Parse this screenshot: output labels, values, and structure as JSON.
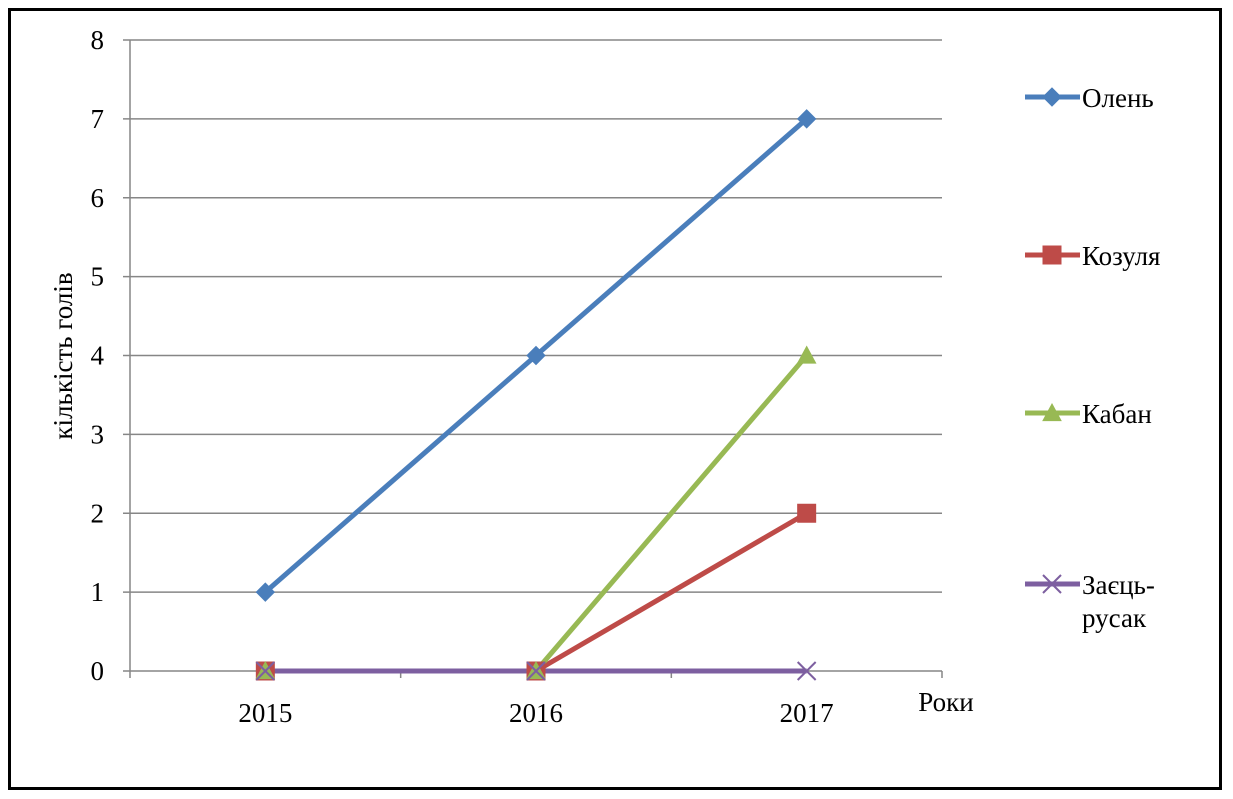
{
  "chart_data": {
    "type": "line",
    "title": "",
    "xlabel": "Роки",
    "ylabel": "кількість голів",
    "categories": [
      "2015",
      "2016",
      "2017"
    ],
    "ylim": [
      0,
      8
    ],
    "yticks": [
      "0",
      "1",
      "2",
      "3",
      "4",
      "5",
      "6",
      "7",
      "8"
    ],
    "grid": true,
    "legend_position": "right",
    "series": [
      {
        "name": "Олень",
        "values": [
          1,
          4,
          7
        ],
        "color": "#4a7ebb",
        "marker": "diamond"
      },
      {
        "name": "Козуля",
        "values": [
          0,
          0,
          2
        ],
        "color": "#be4b48",
        "marker": "square"
      },
      {
        "name": "Кабан",
        "values": [
          0,
          0,
          4
        ],
        "color": "#98b954",
        "marker": "triangle"
      },
      {
        "name": "Заєць-русак",
        "name_lines": [
          "Заєць-",
          "русак"
        ],
        "values": [
          0,
          0,
          0
        ],
        "color": "#7d5fa0",
        "marker": "x"
      }
    ]
  }
}
